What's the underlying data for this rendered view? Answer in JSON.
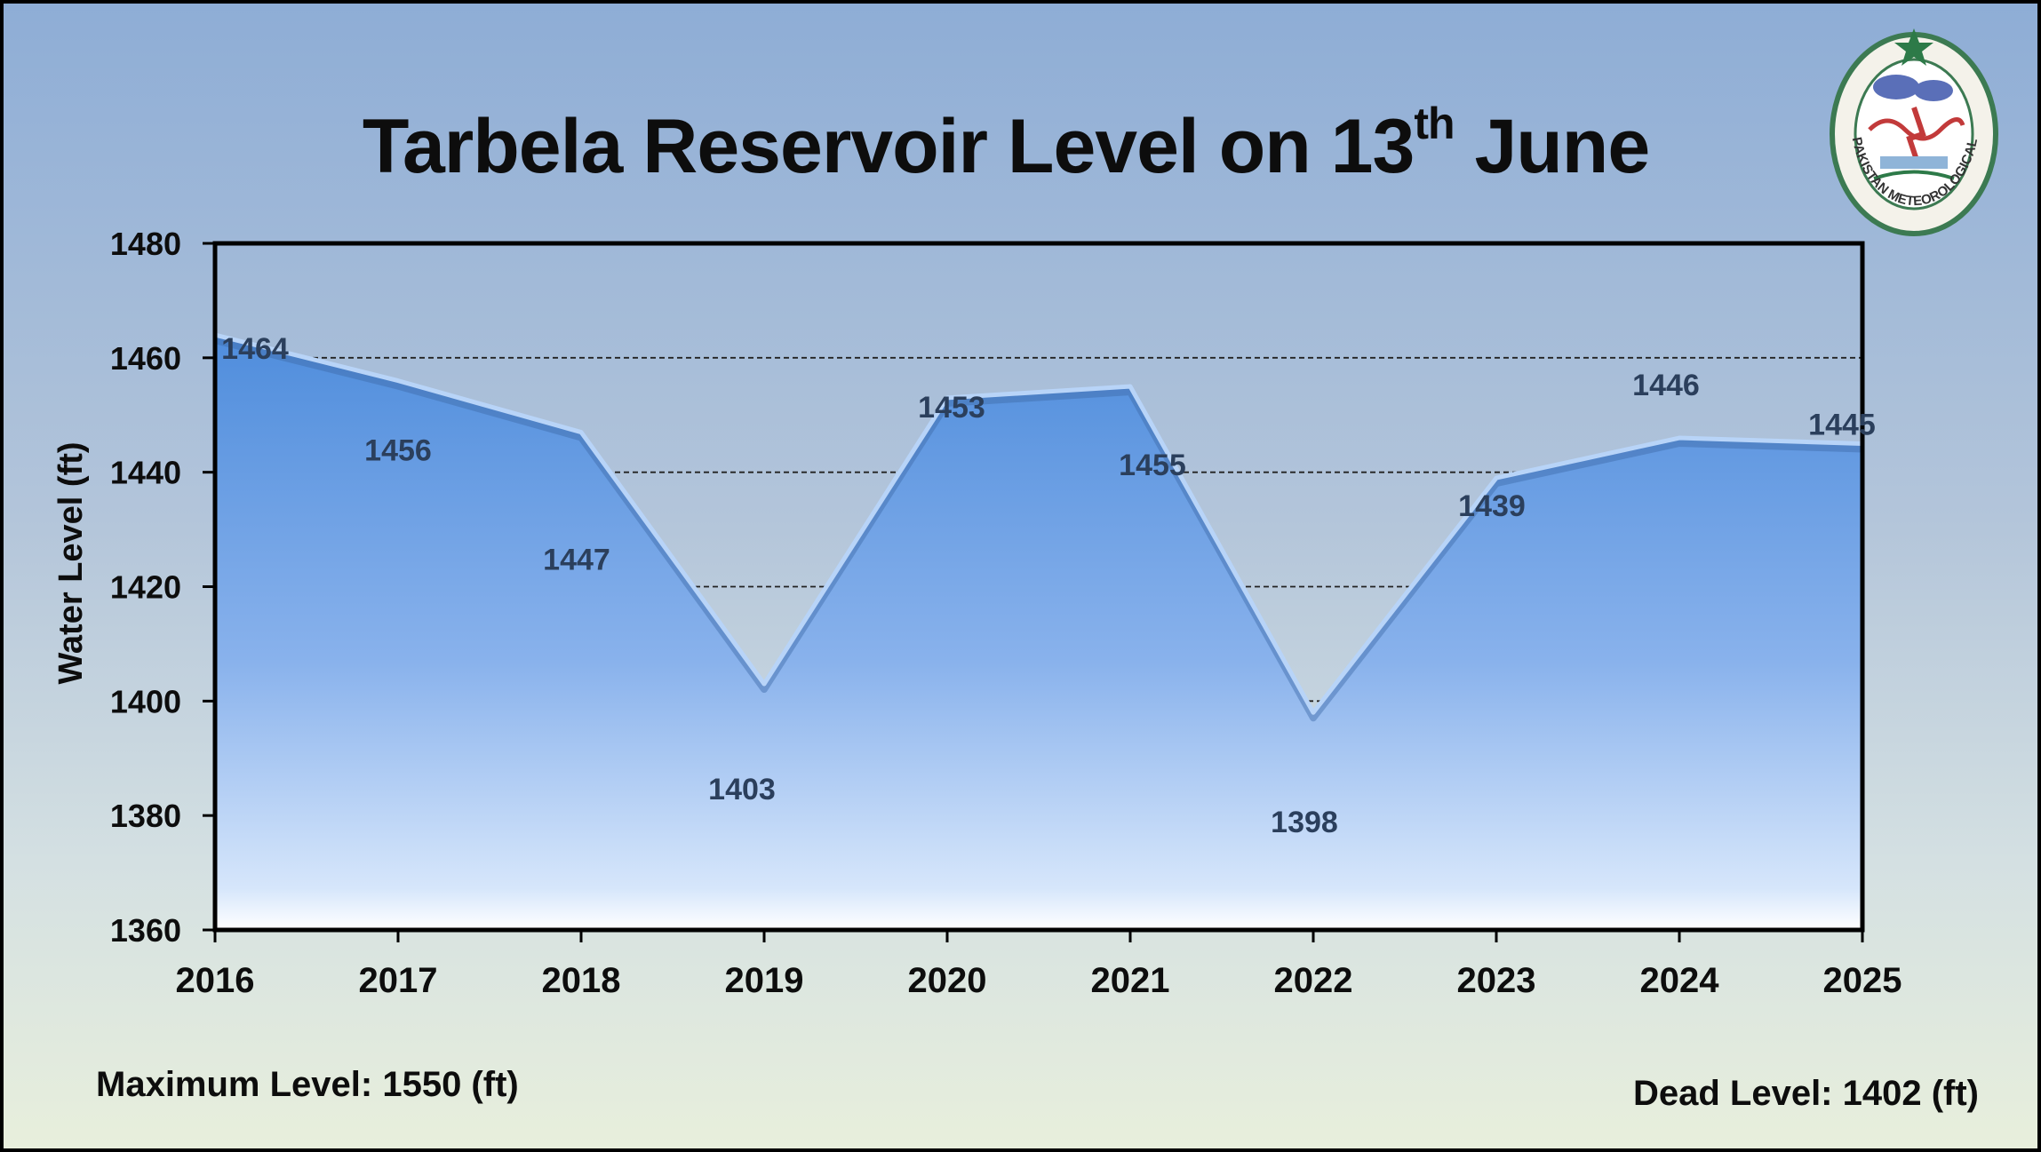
{
  "title": {
    "main": "Tarbela Reservoir Level on 13",
    "sup": "th",
    "tail": " June"
  },
  "logo": {
    "name": "pmd-seal-logo",
    "text": "PAKISTAN METEOROLOGICAL DEPARTMENT"
  },
  "notes": {
    "max_level": "Maximum Level: 1550 (ft)",
    "dead_level": "Dead Level: 1402 (ft)"
  },
  "colors": {
    "area_top": "#5b95e0",
    "area_bottom": "#dbe9fb",
    "label": "#2b3f5c",
    "grid": "#222222"
  },
  "chart_data": {
    "type": "area",
    "x": [
      "2016",
      "2017",
      "2018",
      "2019",
      "2020",
      "2021",
      "2022",
      "2023",
      "2024",
      "2025"
    ],
    "series": [
      {
        "values": [
          1464,
          1456,
          1447,
          1403,
          1453,
          1455,
          1398,
          1439,
          1446,
          1445
        ]
      }
    ],
    "ylabel": "Water Level (ft)",
    "xlabel": "",
    "ylim": [
      1360,
      1480
    ],
    "yticks": [
      1360,
      1380,
      1400,
      1420,
      1440,
      1460,
      1480
    ],
    "grid": "horizontal dashed",
    "data_labels": true
  }
}
